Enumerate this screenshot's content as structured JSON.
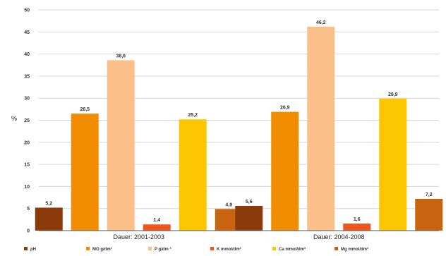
{
  "chart_data": {
    "type": "bar",
    "title": "",
    "xlabel": "",
    "ylabel": "%",
    "ylim": [
      0,
      50
    ],
    "yticks": [
      0,
      5,
      10,
      15,
      20,
      25,
      30,
      35,
      40,
      45,
      50
    ],
    "grid": true,
    "legend_position": "bottom",
    "categories": [
      "Dauer: 2001-2003",
      "Dauer: 2004-2008"
    ],
    "series": [
      {
        "name": "pH",
        "color": "#8B3A0A",
        "values": [
          5.2,
          5.6
        ],
        "labels": [
          "5,2",
          "5,6"
        ]
      },
      {
        "name": "MO g/dm³",
        "color": "#F28C00",
        "values": [
          26.5,
          26.9
        ],
        "labels": [
          "26,5",
          "26,9"
        ]
      },
      {
        "name": "P g/dm ³",
        "color": "#FBC08A",
        "values": [
          38.6,
          46.2
        ],
        "labels": [
          "38,6",
          "46,2"
        ]
      },
      {
        "name": "K mmol/dm³",
        "color": "#F0561A",
        "values": [
          1.4,
          1.6
        ],
        "labels": [
          "1,4",
          "1,6"
        ]
      },
      {
        "name": "Ca mmol/dm³",
        "color": "#FCC600",
        "values": [
          25.2,
          29.9
        ],
        "labels": [
          "25,2",
          "29,9"
        ]
      },
      {
        "name": "Mg mmol/dm³",
        "color": "#C86410",
        "values": [
          4.9,
          7.2
        ],
        "labels": [
          "4,9",
          "7,2"
        ]
      }
    ]
  }
}
